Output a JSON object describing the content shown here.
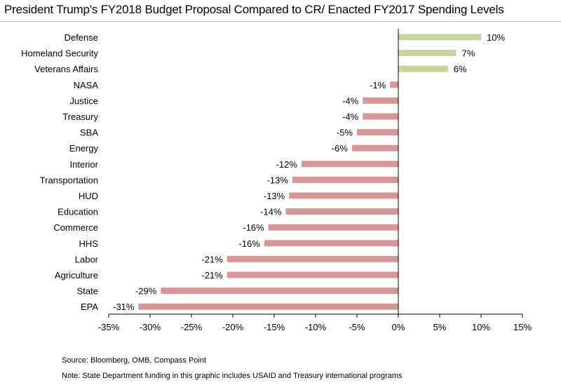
{
  "chart_data": {
    "type": "bar",
    "orientation": "horizontal",
    "title": "President Trump's FY2018 Budget Proposal Compared to CR/ Enacted FY2017 Spending Levels",
    "categories": [
      "Defense",
      "Homeland Security",
      "Veterans Affairs",
      "NASA",
      "Justice",
      "Treasury",
      "SBA",
      "Energy",
      "Interior",
      "Transportation",
      "HUD",
      "Education",
      "Commerce",
      "HHS",
      "Labor",
      "Agriculture",
      "State",
      "EPA"
    ],
    "values": [
      10,
      7,
      6,
      -1,
      -4.3,
      -4.3,
      -5,
      -5.6,
      -11.7,
      -12.8,
      -13.2,
      -13.6,
      -15.7,
      -16.2,
      -20.7,
      -20.7,
      -28.7,
      -31.4
    ],
    "value_labels": [
      "10%",
      "7%",
      "6%",
      "-1%",
      "-4%",
      "-4%",
      "-5%",
      "-6%",
      "-12%",
      "-13%",
      "-13%",
      "-14%",
      "-16%",
      "-16%",
      "-21%",
      "-21%",
      "-29%",
      "-31%"
    ],
    "xlim": [
      -35,
      15
    ],
    "x_ticks": [
      -35,
      -30,
      -25,
      -20,
      -15,
      -10,
      -5,
      0,
      5,
      10,
      15
    ],
    "x_tick_labels": [
      "-35%",
      "-30%",
      "-25%",
      "-20%",
      "-15%",
      "-10%",
      "-5%",
      "0%",
      "5%",
      "10%",
      "15%"
    ],
    "positive_color": "#c3d69b",
    "negative_color": "#d99694",
    "grid": false,
    "legend": "none"
  },
  "notes": {
    "source": "Source: Bloomberg, OMB, Compass Point",
    "footnote": "Note: State Department funding in this graphic includes USAID and Treasury international programs"
  }
}
